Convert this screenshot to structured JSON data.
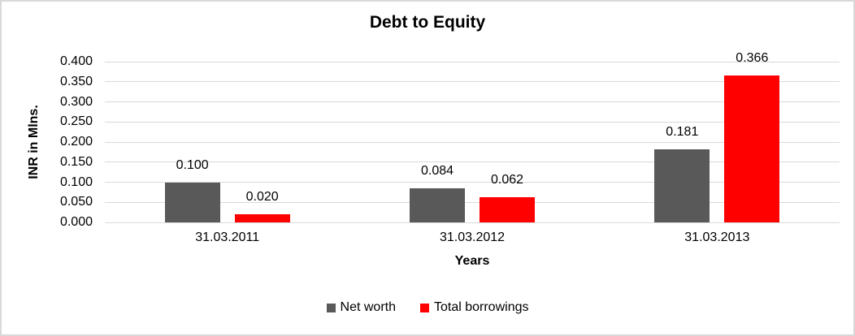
{
  "window": {
    "background": "#ffffff",
    "border_color": "#d9d9d9"
  },
  "chart_data": {
    "type": "bar",
    "title": "Debt to Equity",
    "xlabel": "Years",
    "ylabel": "INR in Mlns.",
    "categories": [
      "31.03.2011",
      "31.03.2012",
      "31.03.2013"
    ],
    "series": [
      {
        "name": "Net worth",
        "color": "#595959",
        "values": [
          0.1,
          0.084,
          0.181
        ]
      },
      {
        "name": "Total borrowings",
        "color": "#FF0000",
        "values": [
          0.02,
          0.062,
          0.366
        ]
      }
    ],
    "ylim": [
      0,
      0.4
    ],
    "ytick_step": 0.05,
    "ytick_decimals": 3,
    "grid": "horizontal",
    "gridline_color": "#d9d9d9",
    "data_labels": true,
    "legend_position": "bottom",
    "text_color": "#000000"
  }
}
